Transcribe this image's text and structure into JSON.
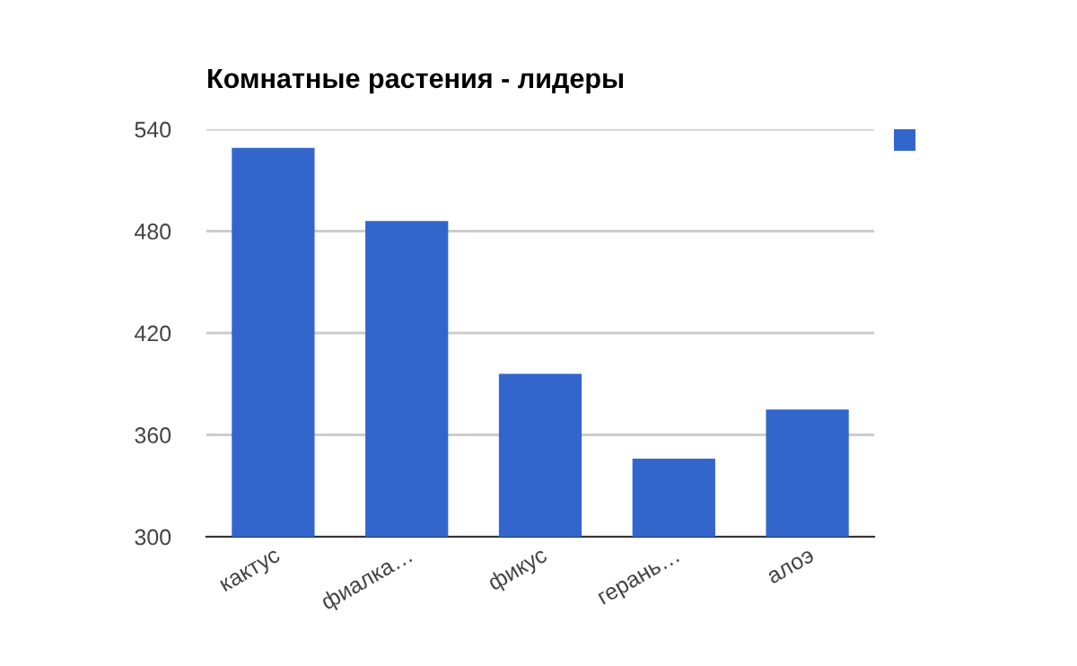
{
  "chart_data": {
    "type": "bar",
    "title": "Комнатные растения - лидеры",
    "categories": [
      "кактус",
      "фиалка…",
      "фикус",
      "герань…",
      "алоэ"
    ],
    "series": [
      {
        "color": "#3366cc",
        "values": [
          529,
          486,
          396,
          346,
          375
        ]
      }
    ],
    "ylim": [
      300,
      540
    ],
    "yticks": [
      300,
      360,
      420,
      480,
      540
    ],
    "grid": "y"
  }
}
